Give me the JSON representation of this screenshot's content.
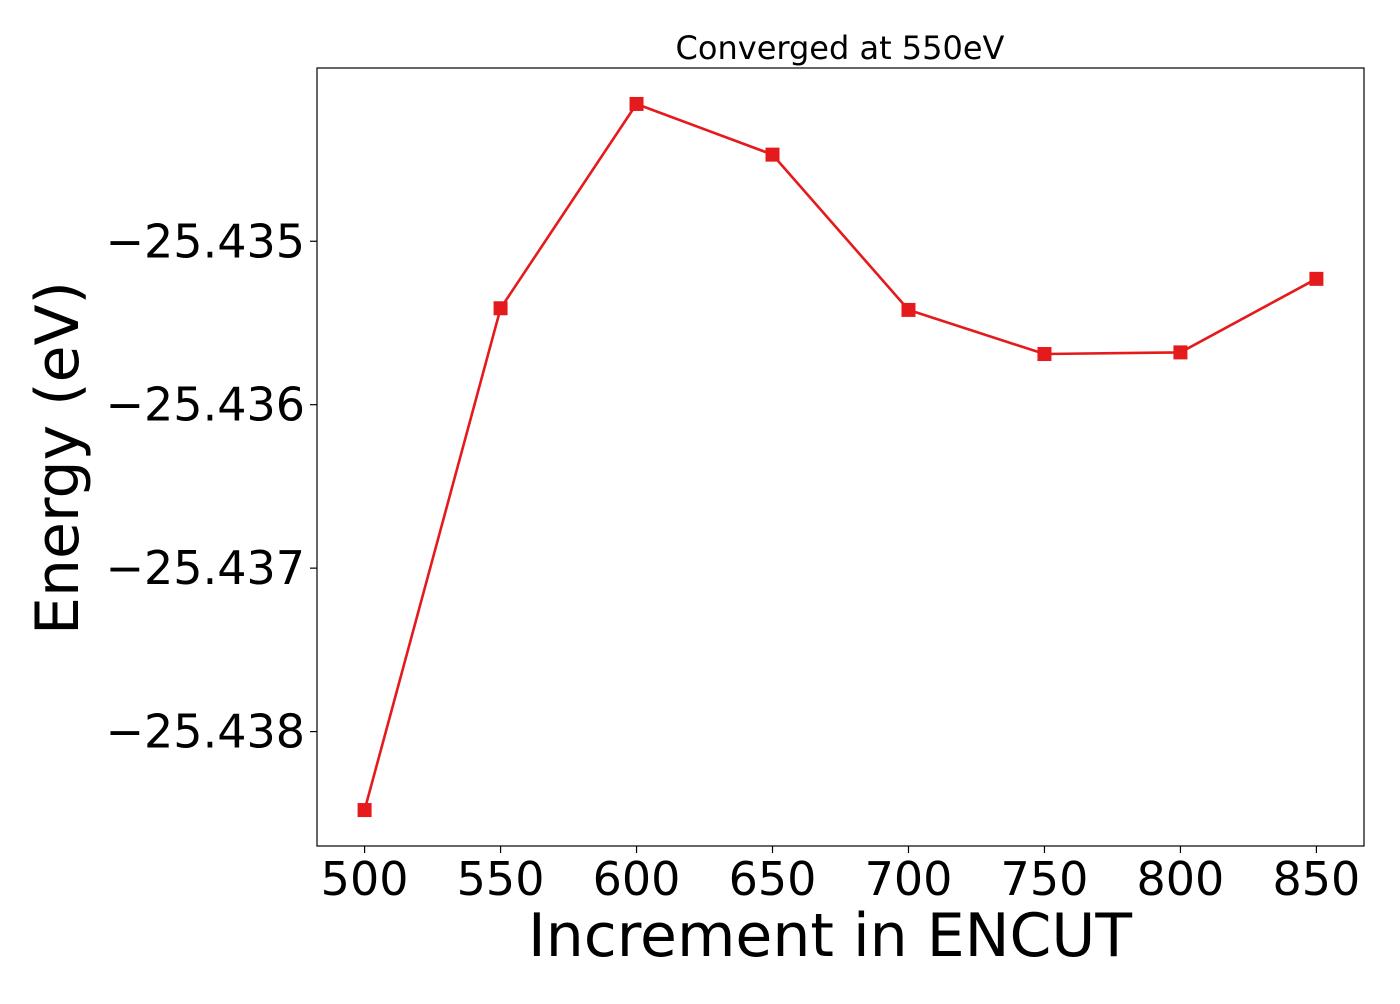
{
  "chart_data": {
    "type": "line",
    "title": "Converged at 550eV",
    "xlabel": "Increment in ENCUT",
    "ylabel": "Energy (eV)",
    "x": [
      500,
      550,
      600,
      650,
      700,
      750,
      800,
      850
    ],
    "series": [
      {
        "values": [
          -25.43848,
          -25.43541,
          -25.43416,
          -25.43447,
          -25.43542,
          -25.43569,
          -25.43568,
          -25.43523
        ],
        "color": "#e41a1c",
        "marker": "square"
      }
    ],
    "xlim": [
      482.5,
      867.5
    ],
    "ylim": [
      -25.4387,
      -25.43394
    ],
    "xticks": [
      500,
      550,
      600,
      650,
      700,
      750,
      800,
      850
    ],
    "xtick_labels": [
      "500",
      "550",
      "600",
      "650",
      "700",
      "750",
      "800",
      "850"
    ],
    "yticks": [
      -25.438,
      -25.437,
      -25.436,
      -25.435
    ],
    "ytick_labels": [
      "−25.438",
      "−25.437",
      "−25.436",
      "−25.435"
    ],
    "grid": false,
    "legend": "none"
  }
}
